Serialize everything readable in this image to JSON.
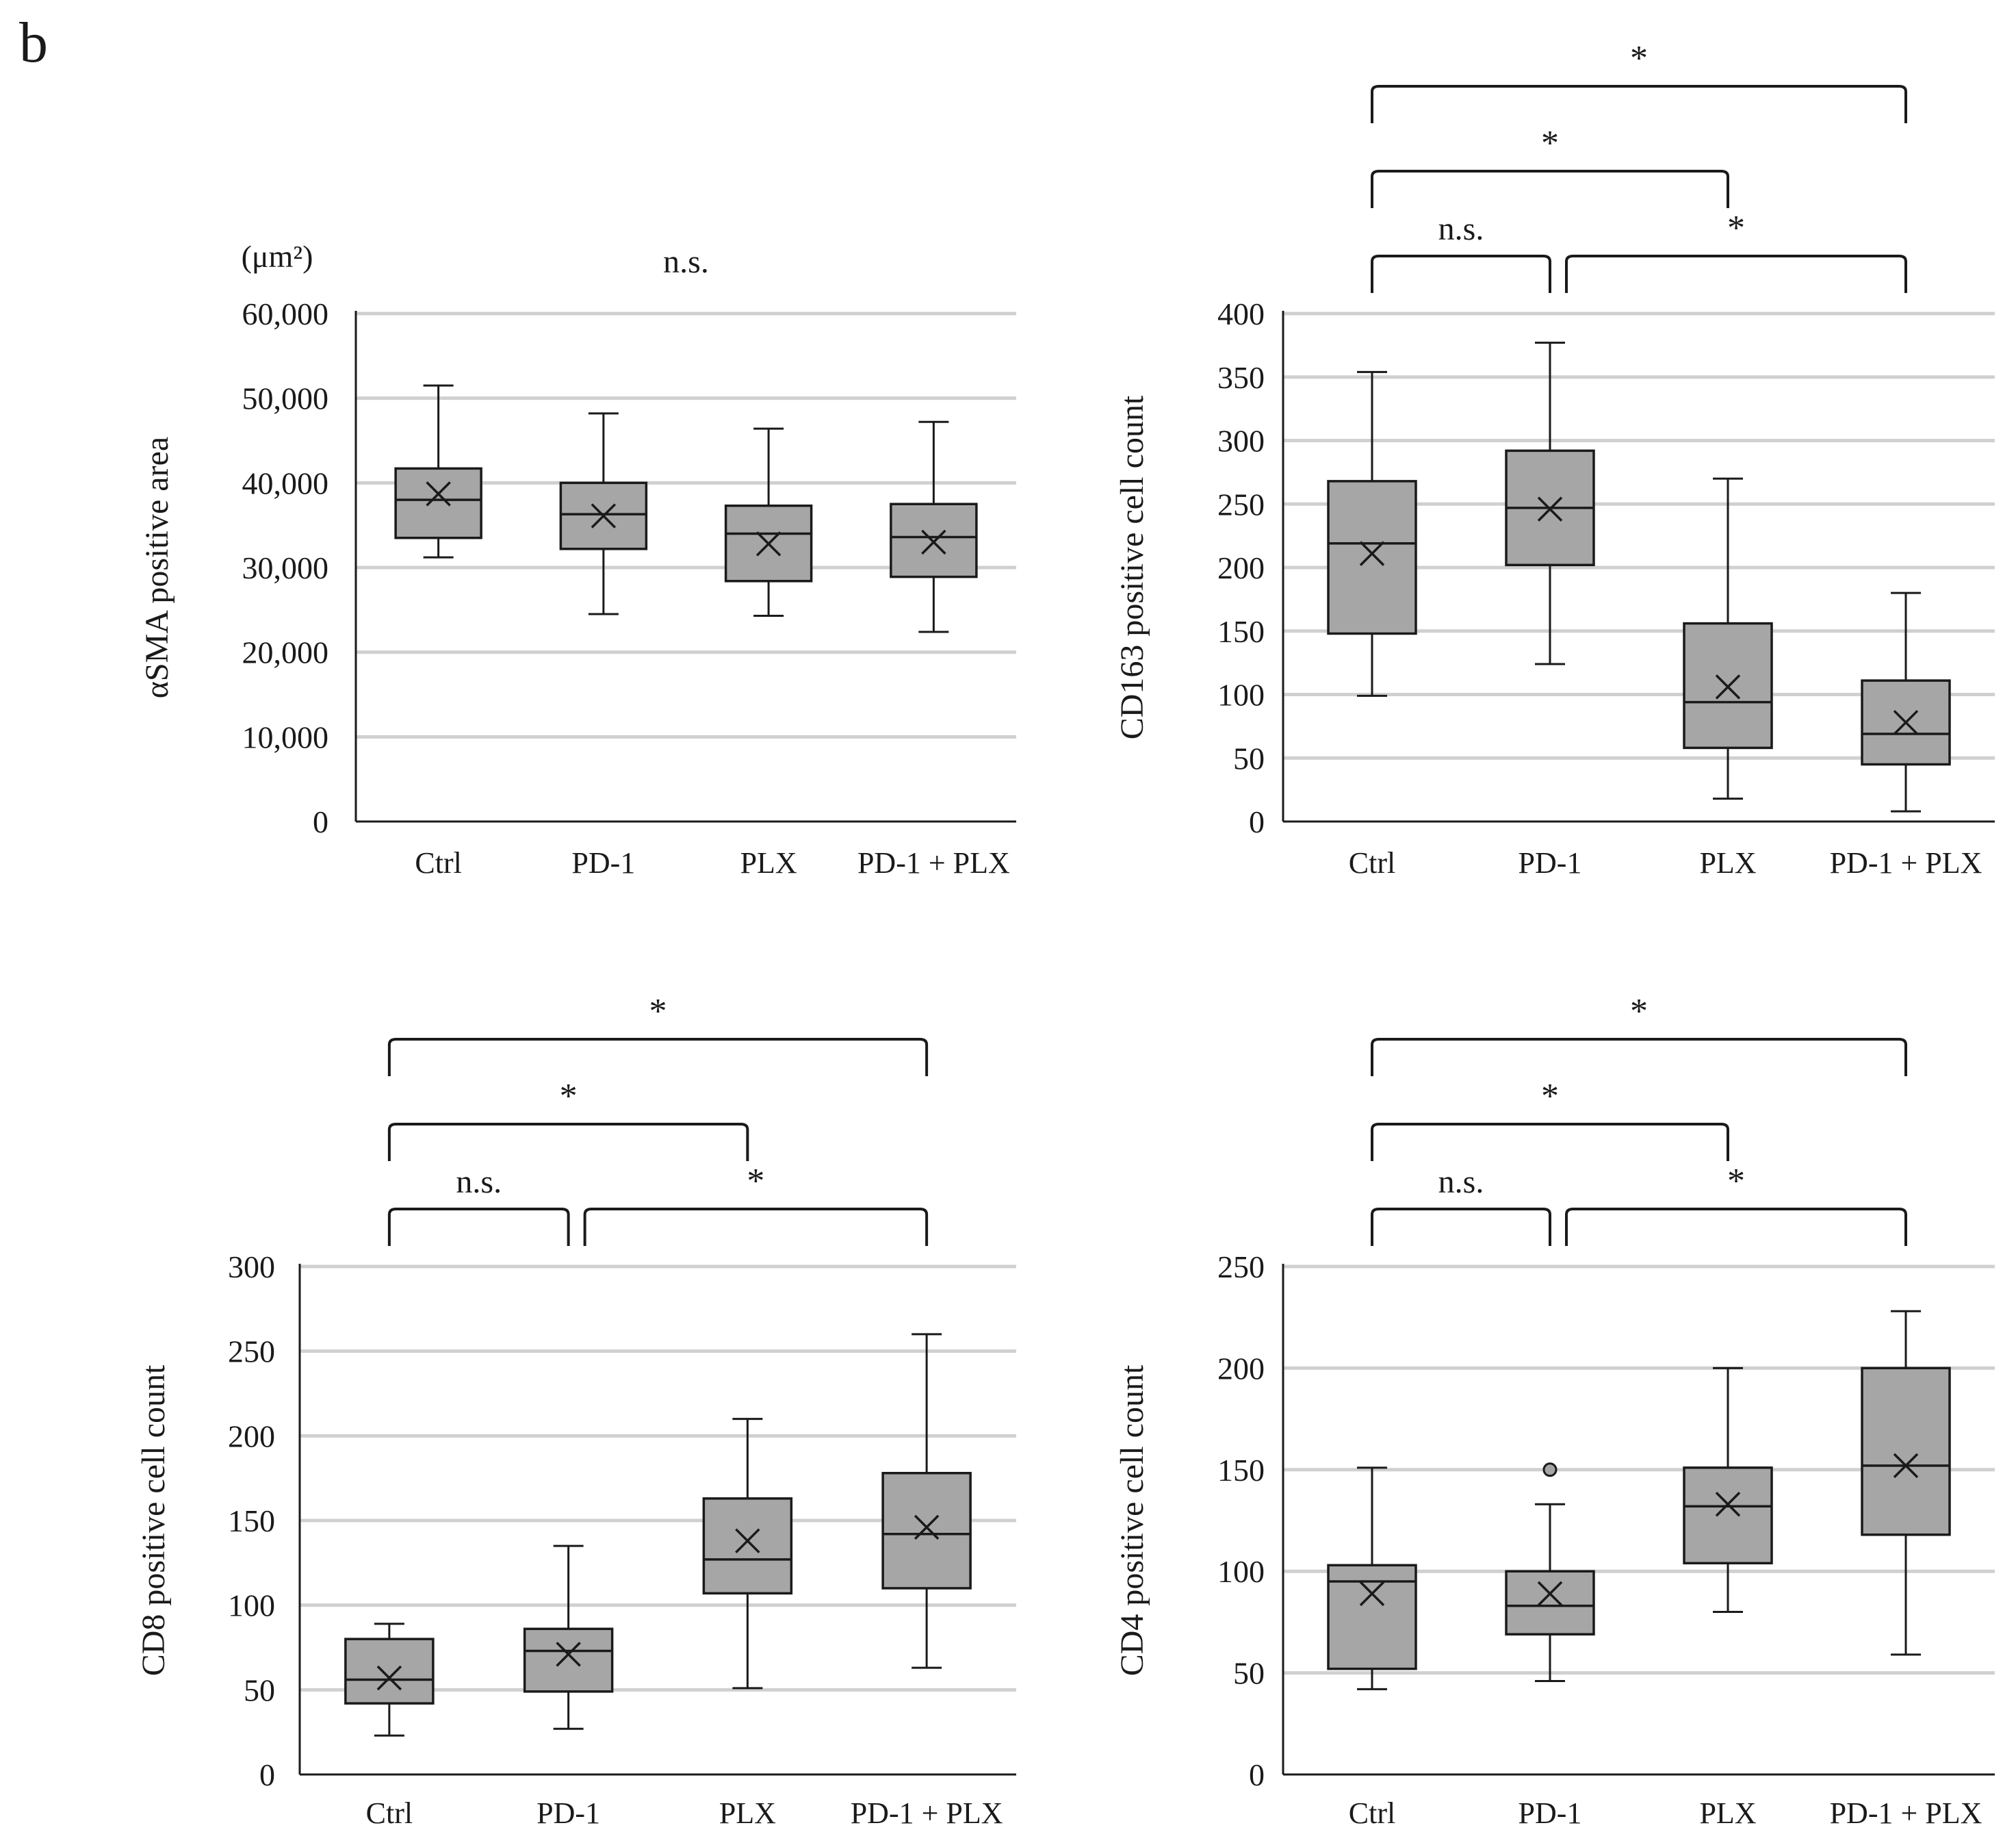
{
  "figure_label": "b",
  "chart_data": [
    {
      "type": "box",
      "unit": "(μm²)",
      "ylabel": "αSMA positive area",
      "ylim": [
        0,
        60000
      ],
      "yticks": [
        0,
        10000,
        20000,
        30000,
        40000,
        50000,
        60000
      ],
      "ytick_labels": [
        "0",
        "10,000",
        "20,000",
        "30,000",
        "40,000",
        "50,000",
        "60,000"
      ],
      "categories": [
        "Ctrl",
        "PD-1",
        "PLX",
        "PD-1 + PLX"
      ],
      "boxes": [
        {
          "min": 31200,
          "q1": 33500,
          "median": 38000,
          "q3": 41700,
          "max": 51500,
          "mean": 38700
        },
        {
          "min": 24500,
          "q1": 32200,
          "median": 36300,
          "q3": 40000,
          "max": 48200,
          "mean": 36100
        },
        {
          "min": 24300,
          "q1": 28400,
          "median": 34000,
          "q3": 37300,
          "max": 46400,
          "mean": 32800
        },
        {
          "min": 22400,
          "q1": 28900,
          "median": 33600,
          "q3": 37500,
          "max": 47200,
          "mean": 33000
        }
      ],
      "outliers": [],
      "annotations": [
        {
          "type": "text",
          "label": "n.s.",
          "over": [
            "Ctrl",
            "PD-1 + PLX"
          ]
        }
      ]
    },
    {
      "type": "box",
      "unit": "",
      "ylabel": "CD163 positive cell count",
      "ylim": [
        0,
        400
      ],
      "yticks": [
        0,
        50,
        100,
        150,
        200,
        250,
        300,
        350,
        400
      ],
      "ytick_labels": [
        "0",
        "50",
        "100",
        "150",
        "200",
        "250",
        "300",
        "350",
        "400"
      ],
      "categories": [
        "Ctrl",
        "PD-1",
        "PLX",
        "PD-1 + PLX"
      ],
      "boxes": [
        {
          "min": 99,
          "q1": 148,
          "median": 219,
          "q3": 268,
          "max": 354,
          "mean": 211
        },
        {
          "min": 124,
          "q1": 202,
          "median": 247,
          "q3": 292,
          "max": 377,
          "mean": 246
        },
        {
          "min": 18,
          "q1": 58,
          "median": 94,
          "q3": 156,
          "max": 270,
          "mean": 106
        },
        {
          "min": 8,
          "q1": 45,
          "median": 69,
          "q3": 111,
          "max": 180,
          "mean": 78
        }
      ],
      "outliers": [],
      "annotations": [
        {
          "type": "bracket",
          "from": 0,
          "to": 1,
          "level": 0,
          "label": "n.s."
        },
        {
          "type": "bracket",
          "from": 1,
          "to": 3,
          "level": 0,
          "label": "*"
        },
        {
          "type": "bracket",
          "from": 0,
          "to": 2,
          "level": 1,
          "label": "*"
        },
        {
          "type": "bracket",
          "from": 0,
          "to": 3,
          "level": 2,
          "label": "*"
        }
      ]
    },
    {
      "type": "box",
      "unit": "",
      "ylabel": "CD8 positive cell count",
      "ylim": [
        0,
        300
      ],
      "yticks": [
        0,
        50,
        100,
        150,
        200,
        250,
        300
      ],
      "ytick_labels": [
        "0",
        "50",
        "100",
        "150",
        "200",
        "250",
        "300"
      ],
      "categories": [
        "Ctrl",
        "PD-1",
        "PLX",
        "PD-1 + PLX"
      ],
      "boxes": [
        {
          "min": 23,
          "q1": 42,
          "median": 56,
          "q3": 80,
          "max": 89,
          "mean": 57
        },
        {
          "min": 27,
          "q1": 49,
          "median": 73,
          "q3": 86,
          "max": 135,
          "mean": 71
        },
        {
          "min": 51,
          "q1": 107,
          "median": 127,
          "q3": 163,
          "max": 210,
          "mean": 138
        },
        {
          "min": 63,
          "q1": 110,
          "median": 142,
          "q3": 178,
          "max": 260,
          "mean": 146
        }
      ],
      "outliers": [],
      "annotations": [
        {
          "type": "bracket",
          "from": 0,
          "to": 1,
          "level": 0,
          "label": "n.s."
        },
        {
          "type": "bracket",
          "from": 1,
          "to": 3,
          "level": 0,
          "label": "*"
        },
        {
          "type": "bracket",
          "from": 0,
          "to": 2,
          "level": 1,
          "label": "*"
        },
        {
          "type": "bracket",
          "from": 0,
          "to": 3,
          "level": 2,
          "label": "*"
        }
      ]
    },
    {
      "type": "box",
      "unit": "",
      "ylabel": "CD4 positive cell count",
      "ylim": [
        0,
        250
      ],
      "yticks": [
        0,
        50,
        100,
        150,
        200,
        250
      ],
      "ytick_labels": [
        "0",
        "50",
        "100",
        "150",
        "200",
        "250"
      ],
      "categories": [
        "Ctrl",
        "PD-1",
        "PLX",
        "PD-1 + PLX"
      ],
      "boxes": [
        {
          "min": 42,
          "q1": 52,
          "median": 95,
          "q3": 103,
          "max": 151,
          "mean": 89
        },
        {
          "min": 46,
          "q1": 69,
          "median": 83,
          "q3": 100,
          "max": 133,
          "mean": 89
        },
        {
          "min": 80,
          "q1": 104,
          "median": 132,
          "q3": 151,
          "max": 200,
          "mean": 133
        },
        {
          "min": 59,
          "q1": 118,
          "median": 152,
          "q3": 200,
          "max": 228,
          "mean": 152
        }
      ],
      "outliers": [
        {
          "category": "PD-1",
          "value": 150
        }
      ],
      "annotations": [
        {
          "type": "bracket",
          "from": 0,
          "to": 1,
          "level": 0,
          "label": "n.s."
        },
        {
          "type": "bracket",
          "from": 1,
          "to": 3,
          "level": 0,
          "label": "*"
        },
        {
          "type": "bracket",
          "from": 0,
          "to": 2,
          "level": 1,
          "label": "*"
        },
        {
          "type": "bracket",
          "from": 0,
          "to": 3,
          "level": 2,
          "label": "*"
        }
      ]
    }
  ],
  "colors": {
    "box_fill": "#a6a6a6",
    "stroke": "#1a1a1a",
    "grid": "#d0d0d0",
    "axis": "#1a1a1a"
  }
}
